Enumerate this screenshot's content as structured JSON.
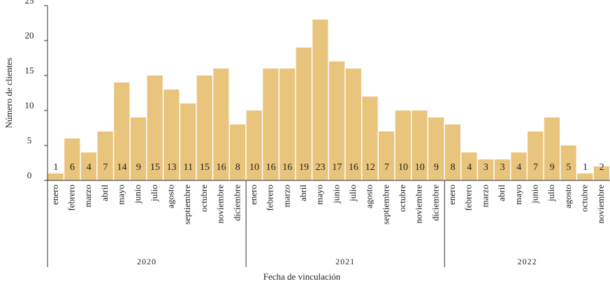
{
  "chart_data": {
    "type": "bar",
    "x_label": "Fecha de vinculación",
    "y_label": "Número de clientes",
    "color": "#e8c47c",
    "ylim": [
      0,
      25
    ],
    "yticks": [
      0,
      5,
      10,
      15,
      20,
      25
    ],
    "groups": [
      {
        "name": "2020",
        "categories": [
          "enero",
          "febrero",
          "marzo",
          "abril",
          "mayo",
          "junio",
          "julio",
          "agosto",
          "septiembre",
          "octubre",
          "noviembre",
          "diciembre"
        ],
        "values": [
          1,
          6,
          4,
          7,
          14,
          9,
          15,
          13,
          11,
          15,
          16,
          8
        ]
      },
      {
        "name": "2021",
        "categories": [
          "enero",
          "febrero",
          "marzo",
          "abril",
          "mayo",
          "junio",
          "julio",
          "agosto",
          "septiembre",
          "octubre",
          "noviembre",
          "diciembre"
        ],
        "values": [
          10,
          16,
          16,
          19,
          23,
          17,
          16,
          12,
          7,
          10,
          10,
          9
        ]
      },
      {
        "name": "2022",
        "categories": [
          "enero",
          "febrero",
          "marzo",
          "abril",
          "mayo",
          "junio",
          "julio",
          "agosto",
          "octubre",
          "noviembre"
        ],
        "values": [
          8,
          4,
          3,
          3,
          4,
          7,
          9,
          5,
          1,
          2
        ]
      }
    ]
  }
}
